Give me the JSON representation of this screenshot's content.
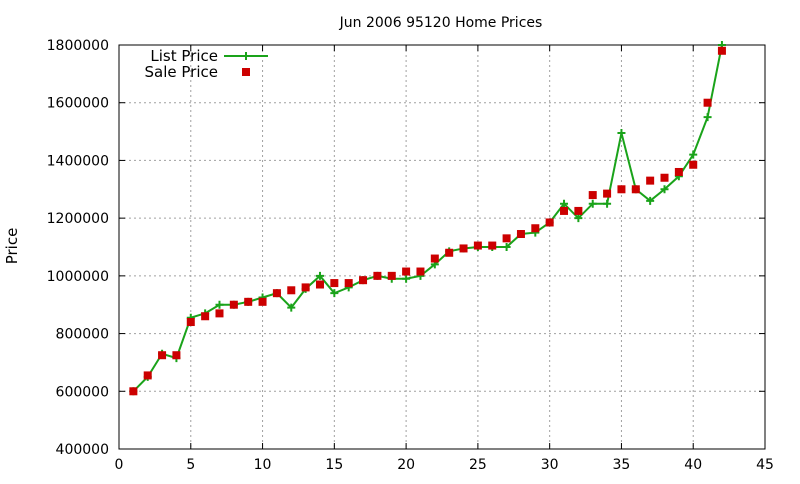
{
  "chart_data": {
    "type": "line",
    "title": "Jun 2006 95120 Home Prices",
    "xlabel": "",
    "ylabel": "Price",
    "xlim": [
      0,
      45
    ],
    "ylim": [
      400000,
      1800000
    ],
    "x_ticks": [
      0,
      5,
      10,
      15,
      20,
      25,
      30,
      35,
      40,
      45
    ],
    "y_ticks": [
      400000,
      600000,
      800000,
      1000000,
      1200000,
      1400000,
      1600000,
      1800000
    ],
    "grid": true,
    "legend_position": "top-left",
    "x": [
      1,
      2,
      3,
      4,
      5,
      6,
      7,
      8,
      9,
      10,
      11,
      12,
      13,
      14,
      15,
      16,
      17,
      18,
      19,
      20,
      21,
      22,
      23,
      24,
      25,
      26,
      27,
      28,
      29,
      30,
      31,
      32,
      33,
      34,
      35,
      36,
      37,
      38,
      39,
      40,
      41,
      42
    ],
    "series": [
      {
        "name": "List Price",
        "style": "linespoints",
        "marker": "plus",
        "color": "#1aa31a",
        "values": [
          600000,
          650000,
          730000,
          715000,
          855000,
          870000,
          900000,
          900000,
          910000,
          925000,
          940000,
          890000,
          955000,
          1000000,
          940000,
          960000,
          985000,
          1000000,
          990000,
          990000,
          1000000,
          1040000,
          1085000,
          1095000,
          1100000,
          1100000,
          1100000,
          1145000,
          1150000,
          1185000,
          1250000,
          1200000,
          1250000,
          1250000,
          1495000,
          1300000,
          1260000,
          1300000,
          1345000,
          1420000,
          1550000,
          1800000
        ]
      },
      {
        "name": "Sale Price",
        "style": "points",
        "marker": "square",
        "color": "#cc0000",
        "values": [
          600000,
          655000,
          725000,
          725000,
          840000,
          860000,
          870000,
          900000,
          910000,
          910000,
          940000,
          950000,
          960000,
          970000,
          975000,
          975000,
          985000,
          1000000,
          1000000,
          1015000,
          1015000,
          1060000,
          1080000,
          1095000,
          1105000,
          1105000,
          1130000,
          1145000,
          1165000,
          1185000,
          1225000,
          1225000,
          1280000,
          1285000,
          1300000,
          1300000,
          1330000,
          1340000,
          1360000,
          1385000,
          1600000,
          1780000
        ]
      }
    ]
  }
}
